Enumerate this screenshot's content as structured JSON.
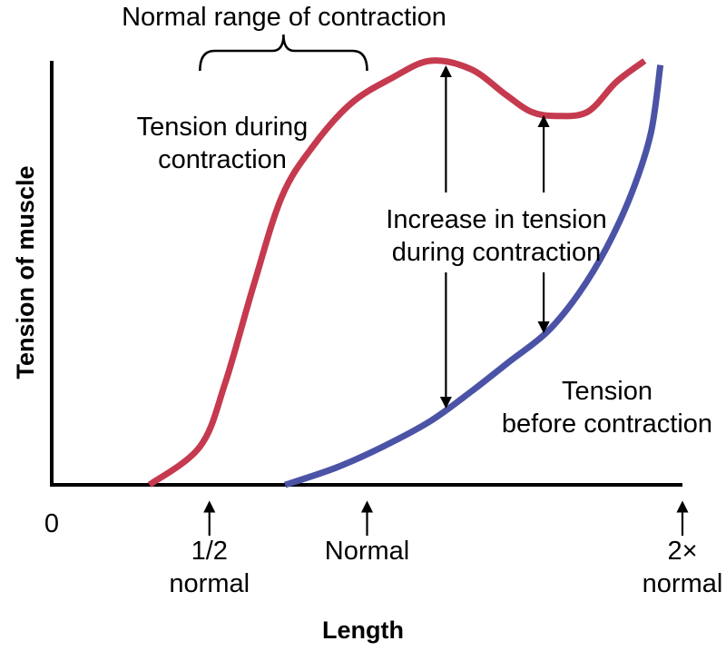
{
  "chart_data": {
    "type": "line",
    "title": "",
    "xlabel": "Length",
    "ylabel": "Tension of muscle",
    "x_ticks": [
      {
        "x": 0,
        "lines": [
          "0"
        ],
        "arrow": false
      },
      {
        "x": 0.5,
        "lines": [
          "1/2",
          "normal"
        ],
        "arrow": true
      },
      {
        "x": 1,
        "lines": [
          "Normal"
        ],
        "arrow": true
      },
      {
        "x": 2,
        "lines": [
          "2×",
          "normal"
        ],
        "arrow": true
      }
    ],
    "xlim": [
      0,
      2
    ],
    "ylim": [
      0,
      1
    ],
    "colors": {
      "during": "#c53a4e",
      "before": "#4b53a6",
      "axis": "#000000"
    },
    "series": [
      {
        "name": "Tension during contraction",
        "key": "during",
        "label_lines": [
          "Tension during",
          "contraction"
        ],
        "points": [
          [
            0.31,
            0.0
          ],
          [
            0.47,
            0.09
          ],
          [
            0.55,
            0.24
          ],
          [
            0.64,
            0.47
          ],
          [
            0.73,
            0.68
          ],
          [
            0.83,
            0.8
          ],
          [
            0.95,
            0.9
          ],
          [
            1.08,
            0.96
          ],
          [
            1.2,
            1.0
          ],
          [
            1.33,
            0.98
          ],
          [
            1.44,
            0.92
          ],
          [
            1.52,
            0.88
          ],
          [
            1.6,
            0.87
          ],
          [
            1.7,
            0.88
          ],
          [
            1.79,
            0.95
          ],
          [
            1.88,
            1.0
          ]
        ]
      },
      {
        "name": "Tension before contraction",
        "key": "before",
        "label_lines": [
          "Tension",
          "before contraction"
        ],
        "points": [
          [
            0.74,
            0.0
          ],
          [
            0.9,
            0.04
          ],
          [
            1.05,
            0.09
          ],
          [
            1.2,
            0.15
          ],
          [
            1.33,
            0.22
          ],
          [
            1.45,
            0.29
          ],
          [
            1.57,
            0.36
          ],
          [
            1.67,
            0.45
          ],
          [
            1.76,
            0.56
          ],
          [
            1.84,
            0.69
          ],
          [
            1.9,
            0.83
          ],
          [
            1.93,
            0.99
          ]
        ]
      }
    ],
    "annotations": {
      "normal_range": {
        "label": "Normal range of contraction",
        "from": 0.47,
        "to": 1.0
      },
      "increase": {
        "label_lines": [
          "Increase in tension",
          "during contraction"
        ],
        "at_x": [
          1.25,
          1.56
        ]
      }
    }
  }
}
